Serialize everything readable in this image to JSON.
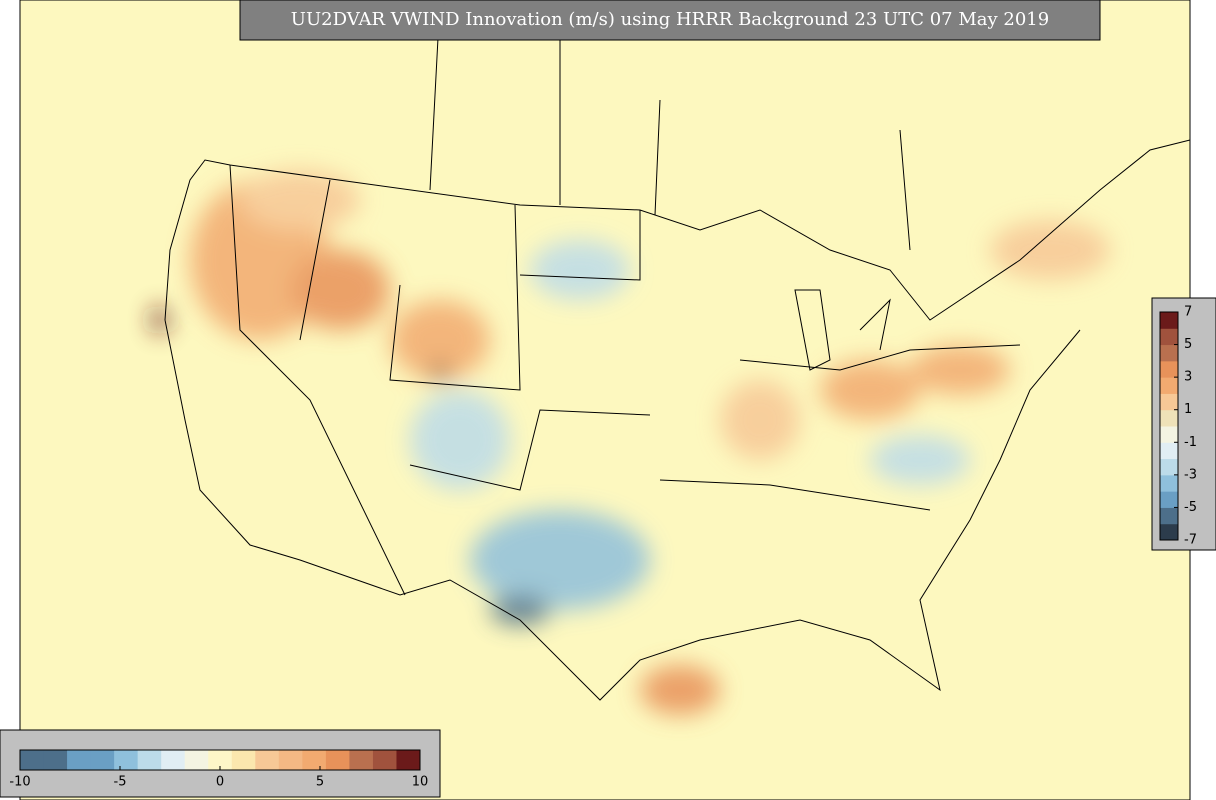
{
  "title": "UU2DVAR VWIND Innovation (m/s) using HRRR Background 23 UTC 07 May 2019",
  "colorbars": [
    {
      "orientation": "vertical",
      "lim": [
        -7,
        7
      ],
      "ticks": [
        7,
        5,
        3,
        1,
        -1,
        -3,
        -5,
        -7
      ],
      "colors": [
        "#2c3c4c",
        "#4d6f8a",
        "#6a9fc4",
        "#8fc0dc",
        "#bcdbe9",
        "#e1eef4",
        "#f4f4e2",
        "#efe2b8",
        "#f7c896",
        "#f2aa70",
        "#e8925a",
        "#b9704f",
        "#a0523d",
        "#6b1a1a"
      ]
    },
    {
      "orientation": "horizontal",
      "lim": [
        -10,
        10
      ],
      "ticks": [
        -10,
        -5,
        0,
        5,
        10
      ],
      "colors": [
        "#4d6f8a",
        "#4d6f8a",
        "#6a9fc4",
        "#6a9fc4",
        "#8fc0dc",
        "#bcdbe9",
        "#e1eef4",
        "#f4f4e2",
        "#fdf6c8",
        "#fbe7ae",
        "#f7c896",
        "#f4b884",
        "#f2aa70",
        "#e8925a",
        "#b9704f",
        "#a0523d",
        "#6b1a1a"
      ]
    }
  ]
}
